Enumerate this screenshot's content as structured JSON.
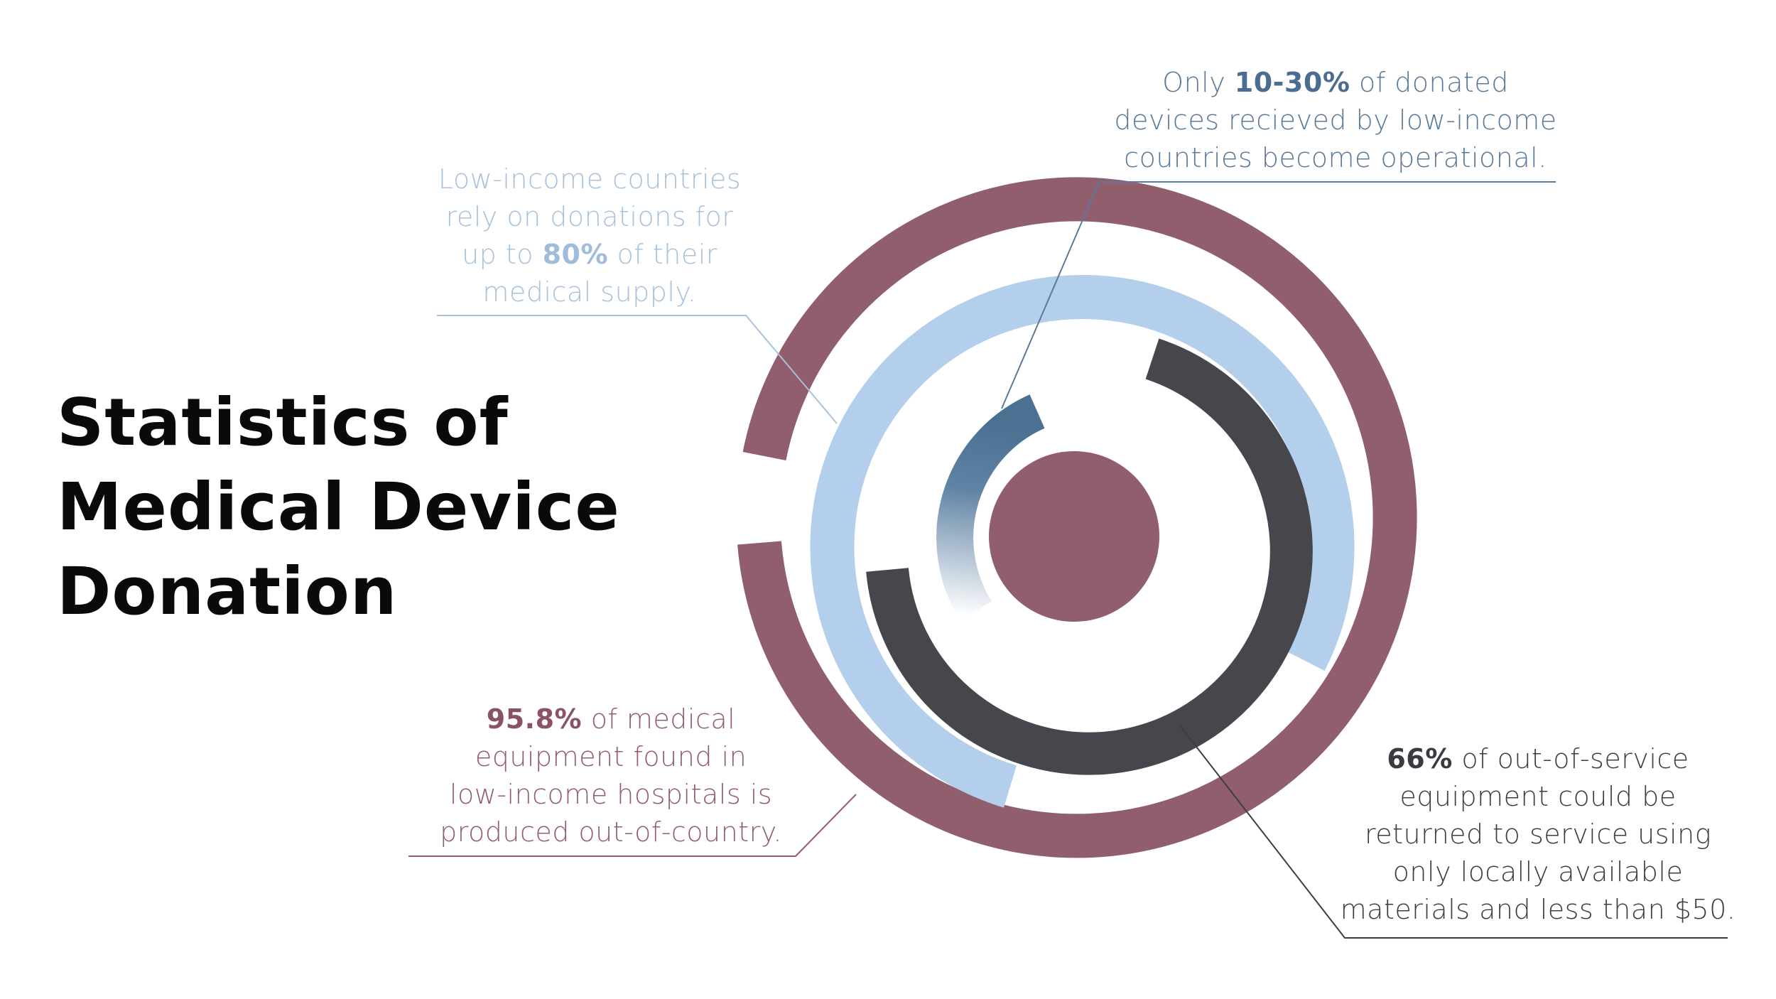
{
  "title_lines": [
    "Statistics of",
    "Medical Device",
    "Donation"
  ],
  "notes": {
    "top": {
      "lines": [
        [
          "Only ",
          "10-30%",
          " of donated"
        ],
        [
          "devices recieved by low-income"
        ],
        [
          "countries become operational."
        ]
      ]
    },
    "left": {
      "lines": [
        [
          "Low-income countries"
        ],
        [
          "rely on donations for"
        ],
        [
          "up to ",
          "80%",
          " of their"
        ],
        [
          "medical supply."
        ]
      ]
    },
    "bottom": {
      "lines": [
        [
          "95.8%",
          " of medical"
        ],
        [
          "equipment found in"
        ],
        [
          "low-income hospitals is"
        ],
        [
          "produced out-of-country."
        ]
      ]
    },
    "right": {
      "lines": [
        [
          "66%",
          " of out-of-service"
        ],
        [
          "equipment could be"
        ],
        [
          "returned to service using"
        ],
        [
          "only locally available"
        ],
        [
          "materials and less than $50."
        ]
      ]
    }
  },
  "rings": {
    "outer": {
      "value_percent": 95.8,
      "color": "#915e6e"
    },
    "light": {
      "value_percent": 80,
      "color": "#b4cfeb"
    },
    "dark": {
      "value_percent": 66,
      "color": "#46464d"
    },
    "inner": {
      "value_percent": 30,
      "color": "#4a7092"
    },
    "core_color": "#915e6e"
  }
}
